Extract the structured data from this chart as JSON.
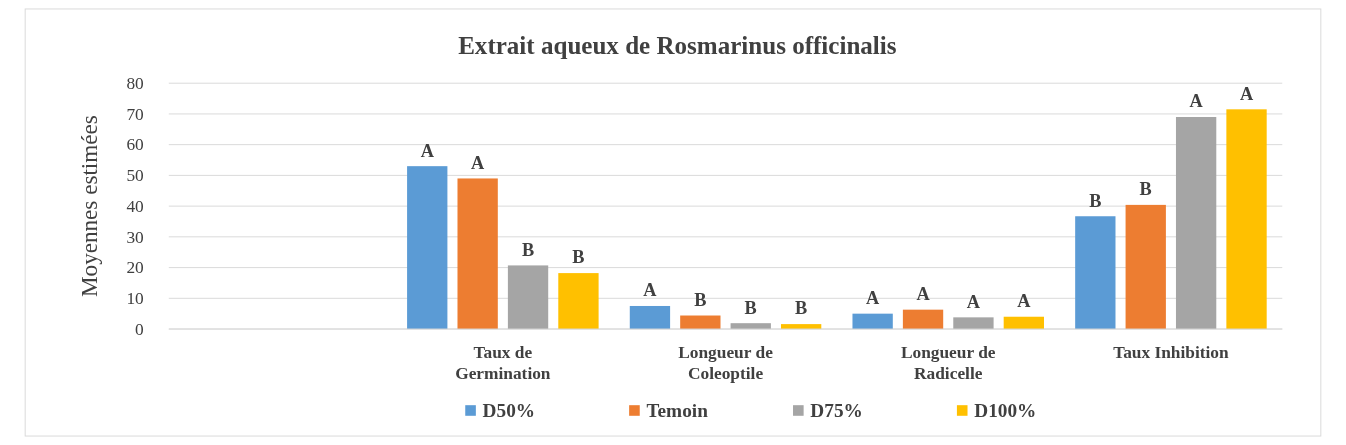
{
  "chart_data": {
    "type": "bar",
    "title": "Extrait aqueux de Rosmarinus officinalis",
    "ylabel": "Moyennes estimées",
    "categories": [
      null,
      "Taux de Germination",
      "Longueur de Coleoptile",
      "Longueur de Radicelle",
      "Taux Inhibition"
    ],
    "series": [
      {
        "name": "D50%",
        "color": "#5b9bd5",
        "values": [
          null,
          53,
          7.5,
          5,
          36.7
        ],
        "value_labels": [
          null,
          "A",
          "A",
          "A",
          "B"
        ]
      },
      {
        "name": "Temoin",
        "color": "#ed7d31",
        "values": [
          null,
          49,
          4.4,
          6.3,
          40.4
        ],
        "value_labels": [
          null,
          "A",
          "B",
          "A",
          "B"
        ]
      },
      {
        "name": "D75%",
        "color": "#a5a5a5",
        "values": [
          null,
          20.7,
          1.9,
          3.8,
          69
        ],
        "value_labels": [
          null,
          "B",
          "B",
          "A",
          "A"
        ]
      },
      {
        "name": "D100%",
        "color": "#ffc000",
        "values": [
          null,
          18.2,
          1.6,
          4,
          71.5
        ],
        "value_labels": [
          null,
          "B",
          "B",
          "A",
          "A"
        ]
      }
    ],
    "ylim": [
      0,
      80
    ],
    "yticks": [
      0,
      10,
      20,
      30,
      40,
      50,
      60,
      70,
      80
    ],
    "grid": "y",
    "legend": "bottom"
  }
}
